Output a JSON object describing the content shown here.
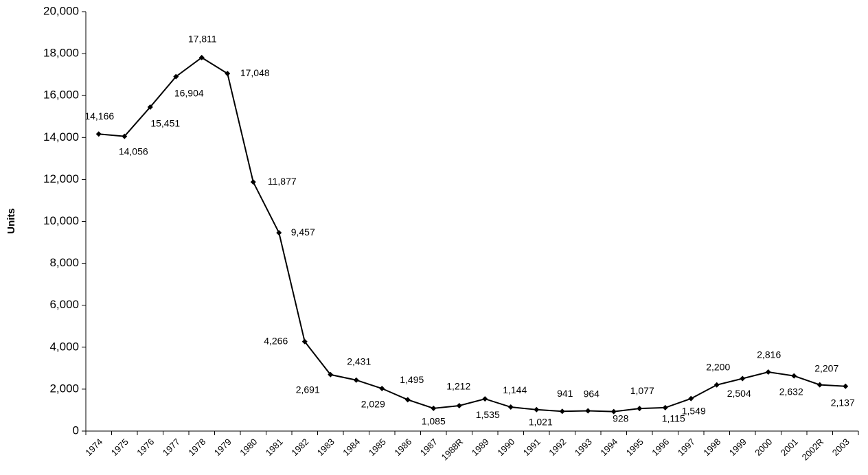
{
  "chart_data": {
    "type": "line",
    "y_label": "Units",
    "color": "#000000",
    "categories": [
      "1974",
      "1975",
      "1976",
      "1977",
      "1978",
      "1979",
      "1980",
      "1981",
      "1982",
      "1983",
      "1984",
      "1985",
      "1986",
      "1987",
      "1988R",
      "1989",
      "1990",
      "1991",
      "1992",
      "1993",
      "1994",
      "1995",
      "1996",
      "1997",
      "1998",
      "1999",
      "2000",
      "2001",
      "2002R",
      "2003"
    ],
    "values": [
      14166,
      14056,
      15451,
      16904,
      17811,
      17048,
      11877,
      9457,
      4266,
      2691,
      2431,
      2029,
      1495,
      1085,
      1212,
      1535,
      1144,
      1021,
      941,
      964,
      928,
      1077,
      1115,
      1549,
      2200,
      2504,
      2816,
      2632,
      2207,
      2137
    ],
    "value_labels": [
      "14,166",
      "14,056",
      "15,451",
      "16,904",
      "17,811",
      "17,048",
      "11,877",
      "9,457",
      "4,266",
      "2,691",
      "2,431",
      "2,029",
      "1,495",
      "1,085",
      "1,212",
      "1,535",
      "1,144",
      "1,021",
      "941",
      "964",
      "928",
      "1,077",
      "1,115",
      "1,549",
      "2,200",
      "2,504",
      "2,816",
      "2,632",
      "2,207",
      "2,137"
    ],
    "ylim": [
      0,
      20000
    ],
    "yticks": [
      0,
      {
        "value": 2000,
        "label": "2,000"
      },
      {
        "value": 4000,
        "label": "4,000"
      },
      {
        "value": 6000,
        "label": "6,000"
      },
      {
        "value": 8000,
        "label": "8,000"
      },
      {
        "value": 10000,
        "label": "10,000"
      },
      {
        "value": 12000,
        "label": "12,000"
      },
      {
        "value": 14000,
        "label": "14,000"
      },
      {
        "value": 16000,
        "label": "16,000"
      },
      {
        "value": 18000,
        "label": "18,000"
      },
      {
        "value": 20000,
        "label": "20,000"
      }
    ],
    "grid": false
  }
}
